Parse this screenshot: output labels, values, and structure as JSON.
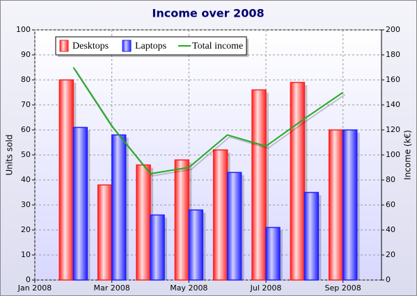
{
  "chart_data": {
    "type": "bar-line",
    "title": "Income over 2008",
    "y_label": "Units sold",
    "y2_label": "Income (k€)",
    "x": [
      "2008-02",
      "2008-03",
      "2008-04",
      "2008-05",
      "2008-06",
      "2008-07",
      "2008-08",
      "2008-09"
    ],
    "xlim": [
      "2008-01",
      "2008-10"
    ],
    "xticks": [
      {
        "value": "2008-01",
        "label": "Jan 2008"
      },
      {
        "value": "2008-03",
        "label": "Mar 2008"
      },
      {
        "value": "2008-05",
        "label": "May 2008"
      },
      {
        "value": "2008-07",
        "label": "Jul 2008"
      },
      {
        "value": "2008-09",
        "label": "Sep 2008"
      }
    ],
    "ylim": [
      0,
      100
    ],
    "yticks": [
      0,
      10,
      20,
      30,
      40,
      50,
      60,
      70,
      80,
      90,
      100
    ],
    "y2lim": [
      0,
      200
    ],
    "y2ticks": [
      0,
      20,
      40,
      60,
      80,
      100,
      120,
      140,
      160,
      180,
      200
    ],
    "grid": true,
    "legend": "upper left",
    "series": [
      {
        "name": "Desktops",
        "type": "bar",
        "color": "#ff2020",
        "values": [
          80,
          38,
          46,
          48,
          52,
          76,
          79,
          60
        ]
      },
      {
        "name": "Laptops",
        "type": "bar",
        "color": "#2020ff",
        "values": [
          61,
          58,
          26,
          28,
          43,
          21,
          35,
          60
        ]
      },
      {
        "name": "Total income",
        "type": "line",
        "axis": "y2",
        "color": "#22aa22",
        "values": [
          170,
          123,
          85,
          90,
          116,
          107,
          129,
          150
        ]
      }
    ]
  }
}
